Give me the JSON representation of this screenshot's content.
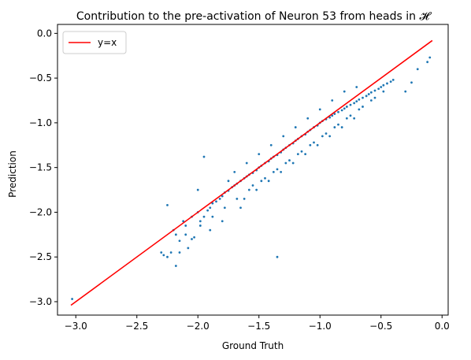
{
  "chart_data": {
    "type": "scatter",
    "title": "Contribution to the pre-activation of Neuron 53 from heads in 𝓗",
    "xlabel": "Ground Truth",
    "ylabel": "Prediction",
    "xlim": [
      -3.15,
      0.05
    ],
    "ylim": [
      -3.15,
      0.1
    ],
    "xticks": [
      -3.0,
      -2.5,
      -2.0,
      -1.5,
      -1.0,
      -0.5,
      0.0
    ],
    "xtick_labels": [
      "−3.0",
      "−2.5",
      "−2.0",
      "−1.5",
      "−1.0",
      "−0.5",
      "0.0"
    ],
    "yticks": [
      -3.0,
      -2.5,
      -2.0,
      -1.5,
      -1.0,
      -0.5,
      0.0
    ],
    "ytick_labels": [
      "−3.0",
      "−2.5",
      "−2.0",
      "−1.5",
      "−1.0",
      "−0.5",
      "0.0"
    ],
    "grid": false,
    "legend": {
      "position": "upper-left",
      "entries": [
        "y=x"
      ]
    },
    "colors": {
      "points": "#1f77b4",
      "line": "#ff0000"
    },
    "series": [
      {
        "name": "y=x",
        "kind": "line",
        "x": [
          -3.04,
          -0.08
        ],
        "y": [
          -3.04,
          -0.08
        ]
      },
      {
        "kind": "scatter",
        "x": [
          -3.03,
          -2.3,
          -2.28,
          -2.25,
          -2.2,
          -2.18,
          -2.15,
          -2.12,
          -2.1,
          -2.08,
          -2.05,
          -2.03,
          -2.0,
          -1.98,
          -1.95,
          -1.92,
          -1.9,
          -1.88,
          -1.85,
          -1.82,
          -1.8,
          -1.78,
          -1.75,
          -1.72,
          -1.7,
          -1.68,
          -1.65,
          -1.62,
          -1.6,
          -1.58,
          -1.55,
          -1.52,
          -1.5,
          -1.48,
          -1.45,
          -1.42,
          -1.4,
          -1.38,
          -1.35,
          -1.32,
          -1.3,
          -1.28,
          -1.25,
          -1.22,
          -1.2,
          -1.18,
          -1.15,
          -1.12,
          -1.1,
          -1.08,
          -1.05,
          -1.02,
          -1.0,
          -0.98,
          -0.95,
          -0.92,
          -0.9,
          -0.88,
          -0.85,
          -0.82,
          -0.8,
          -0.78,
          -0.75,
          -0.72,
          -0.7,
          -0.68,
          -0.65,
          -0.62,
          -0.6,
          -0.58,
          -0.55,
          -0.52,
          -0.5,
          -0.48,
          -0.45,
          -0.42,
          -0.4,
          -0.12,
          -0.1,
          -0.2,
          -1.35,
          -1.95,
          -2.18,
          -2.05,
          -1.7,
          -1.6,
          -1.5,
          -1.4,
          -1.3,
          -1.2,
          -1.1,
          -1.0,
          -0.9,
          -0.8,
          -0.7,
          -2.22,
          -2.1,
          -1.98,
          -1.88,
          -1.78,
          -1.68,
          -1.58,
          -1.48,
          -1.38,
          -1.28,
          -1.18,
          -1.08,
          -0.98,
          -0.88,
          -0.78,
          -0.68,
          -0.58,
          -0.48,
          -2.0,
          -1.75,
          -1.55,
          -1.45,
          -1.35,
          -1.25,
          -1.15,
          -1.05,
          -0.95,
          -0.85,
          -0.75,
          -0.65,
          -0.55,
          -0.3,
          -0.25,
          -1.62,
          -1.52,
          -1.42,
          -1.32,
          -1.22,
          -1.12,
          -1.02,
          -0.92,
          -0.82,
          -0.72,
          -1.9,
          -1.8,
          -1.65,
          -2.15,
          -2.25
        ],
        "y": [
          -2.97,
          -2.45,
          -2.48,
          -1.92,
          -2.2,
          -2.25,
          -2.32,
          -2.1,
          -2.15,
          -2.4,
          -2.05,
          -2.28,
          -2.0,
          -2.1,
          -2.05,
          -1.98,
          -1.95,
          -1.9,
          -1.88,
          -1.85,
          -1.82,
          -1.78,
          -1.76,
          -1.72,
          -1.7,
          -1.68,
          -1.65,
          -1.62,
          -1.6,
          -1.58,
          -1.56,
          -1.53,
          -1.5,
          -1.48,
          -1.45,
          -1.43,
          -1.4,
          -1.38,
          -1.36,
          -1.33,
          -1.3,
          -1.28,
          -1.25,
          -1.23,
          -1.2,
          -1.18,
          -1.15,
          -1.13,
          -1.1,
          -1.08,
          -1.05,
          -1.03,
          -1.0,
          -0.98,
          -0.96,
          -0.94,
          -0.92,
          -0.9,
          -0.88,
          -0.86,
          -0.84,
          -0.82,
          -0.8,
          -0.78,
          -0.76,
          -0.74,
          -0.72,
          -0.7,
          -0.68,
          -0.66,
          -0.64,
          -0.62,
          -0.6,
          -0.58,
          -0.56,
          -0.54,
          -0.52,
          -0.32,
          -0.27,
          -0.4,
          -2.5,
          -1.38,
          -2.6,
          -2.3,
          -1.55,
          -1.45,
          -1.35,
          -1.25,
          -1.15,
          -1.05,
          -0.95,
          -0.85,
          -0.75,
          -0.65,
          -0.6,
          -2.45,
          -2.25,
          -2.15,
          -2.05,
          -1.95,
          -1.85,
          -1.75,
          -1.65,
          -1.55,
          -1.45,
          -1.35,
          -1.25,
          -1.15,
          -1.05,
          -0.95,
          -0.85,
          -0.75,
          -0.65,
          -1.75,
          -1.65,
          -1.7,
          -1.62,
          -1.52,
          -1.42,
          -1.32,
          -1.22,
          -1.12,
          -1.02,
          -0.92,
          -0.82,
          -0.72,
          -0.65,
          -0.55,
          -1.85,
          -1.75,
          -1.65,
          -1.55,
          -1.45,
          -1.35,
          -1.25,
          -1.15,
          -1.05,
          -0.95,
          -2.2,
          -2.1,
          -1.95,
          -2.45,
          -2.5
        ]
      }
    ]
  }
}
